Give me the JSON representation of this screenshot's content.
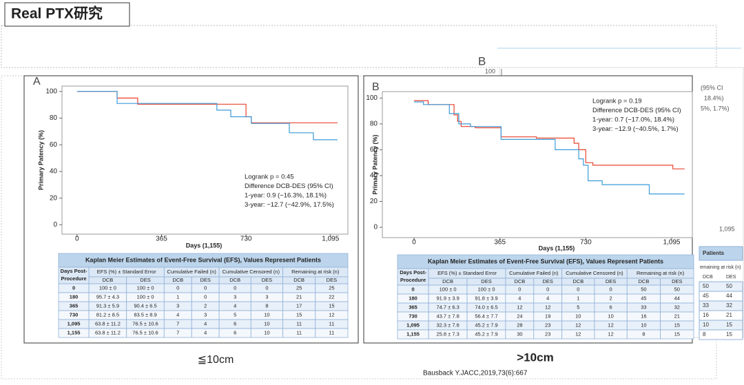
{
  "slide_title": "Real PTX研究",
  "chart_data": [
    {
      "type": "line",
      "panel_label": "A",
      "y_label": "Primary Patency (%)",
      "x_label": "Days (1,155)",
      "annotation": [
        "Logrank p = 0.45",
        "Difference DCB-DES (95% CI)",
        "1-year: 0.9 (−16.3%, 18.1%)",
        "3-year: −12.7 (−42.9%, 17.5%)"
      ],
      "xlim": [
        -65,
        1170
      ],
      "ylim": [
        -7,
        104
      ],
      "xticks": [
        0,
        365,
        730,
        {
          "value": 1095,
          "label": "1,095"
        }
      ],
      "yticks": [
        0,
        20,
        40,
        60,
        80,
        100
      ],
      "series": [
        {
          "color": "#e8412c",
          "x": [
            0,
            173,
            173,
            262,
            262,
            730,
            730,
            753,
            753,
            1125
          ],
          "values": [
            100,
            100,
            95,
            95,
            90.4,
            90.4,
            81,
            81,
            76.5,
            76.5
          ]
        },
        {
          "color": "#3a9ad9",
          "x": [
            0,
            173,
            173,
            604,
            604,
            664,
            664,
            753,
            753,
            917,
            917,
            1021,
            1021,
            1125
          ],
          "values": [
            100,
            100,
            91,
            91,
            86,
            86,
            81,
            81,
            76,
            76,
            69,
            69,
            63.8,
            63.8
          ]
        }
      ]
    },
    {
      "type": "line",
      "panel_label": "B",
      "y_label": "Primary Patency (%)",
      "x_label": "Days (1,155)",
      "annotation": [
        "Logrank p = 0.19",
        "Difference DCB-DES (95% CI)",
        "1-year: 0.7 (−17.0%, 18.4%)",
        "3-year: −12.9 (−40.5%, 1.7%)"
      ],
      "xlim": [
        -135,
        1183
      ],
      "ylim": [
        -8,
        105
      ],
      "xticks": [
        0,
        365,
        730,
        {
          "value": 1095,
          "label": "1,095"
        }
      ],
      "yticks": [
        0,
        20,
        40,
        60,
        80,
        100
      ],
      "series": [
        {
          "color": "#e8412c",
          "x": [
            0,
            60,
            60,
            170,
            170,
            185,
            185,
            200,
            200,
            260,
            260,
            370,
            370,
            520,
            520,
            680,
            680,
            700,
            700,
            730,
            730,
            760,
            760,
            1100,
            1100,
            1150
          ],
          "values": [
            98,
            98,
            95,
            95,
            87,
            87,
            82,
            82,
            78,
            78,
            77,
            77,
            70,
            70,
            69,
            69,
            65,
            65,
            60,
            60,
            50,
            50,
            48,
            48,
            45.2,
            45.2
          ]
        },
        {
          "color": "#3a9ad9",
          "x": [
            0,
            40,
            40,
            150,
            150,
            190,
            190,
            240,
            240,
            370,
            370,
            600,
            600,
            700,
            700,
            720,
            720,
            740,
            740,
            800,
            800,
            1000,
            1000,
            1150
          ],
          "values": [
            97,
            97,
            95,
            95,
            88,
            88,
            80,
            80,
            78,
            78,
            68,
            68,
            60,
            60,
            53,
            53,
            48,
            48,
            36,
            36,
            33,
            33,
            25.8,
            25.8
          ]
        }
      ]
    }
  ],
  "tables": [
    {
      "title": "Kaplan Meier Estimates of Event-Free Survival (EFS), Values Represent Patients",
      "days_header": [
        "Days Post-",
        "Procedure"
      ],
      "groups": [
        "EFS (%) ± Standard Error",
        "Cumulative Failed (n)",
        "Cumulative Censored (n)",
        "Remaining at risk (n)"
      ],
      "subheaders": [
        "DCB",
        "DES",
        "DCB",
        "DES",
        "DCB",
        "DES",
        "DCB",
        "DES"
      ],
      "rows": [
        [
          "0",
          "100 ± 0",
          "100 ± 0",
          "0",
          "0",
          "0",
          "0",
          "25",
          "25"
        ],
        [
          "180",
          "95.7 ± 4.3",
          "100 ± 0",
          "1",
          "0",
          "3",
          "3",
          "21",
          "22"
        ],
        [
          "365",
          "91.3 ± 5.9",
          "90.4 ± 6.5",
          "3",
          "2",
          "4",
          "8",
          "17",
          "15"
        ],
        [
          "730",
          "81.2 ± 8.5",
          "83.5 ± 8.9",
          "4",
          "3",
          "5",
          "10",
          "15",
          "12"
        ],
        [
          "1,095",
          "63.8 ± 11.2",
          "76.5 ± 10.6",
          "7",
          "4",
          "6",
          "10",
          "11",
          "11"
        ],
        [
          "1,155",
          "63.8 ± 11.2",
          "76.5 ± 10.6",
          "7",
          "4",
          "6",
          "10",
          "11",
          "11"
        ]
      ]
    },
    {
      "title": "Kaplan Meier Estimates of Event-Free Survival (EFS), Values Represent Patients",
      "days_header": [
        "Days Post-",
        "Procedure"
      ],
      "groups": [
        "EFS (%) ± Standard Error",
        "Cumulative Failed (n)",
        "Cumulative Censored (n)",
        "Remaining at risk (n)"
      ],
      "subheaders": [
        "DCB",
        "DES",
        "DCB",
        "DES",
        "DCB",
        "DES",
        "DCB",
        "DES"
      ],
      "rows": [
        [
          "0",
          "100 ± 0",
          "100 ± 0",
          "0",
          "0",
          "0",
          "0",
          "50",
          "50"
        ],
        [
          "180",
          "91.9 ± 3.9",
          "91.8 ± 3.9",
          "4",
          "4",
          "1",
          "2",
          "45",
          "44"
        ],
        [
          "365",
          "74.7 ± 6.3",
          "74.0 ± 6.5",
          "12",
          "12",
          "5",
          "6",
          "33",
          "32"
        ],
        [
          "730",
          "43.7 ± 7.8",
          "56.4 ± 7.7",
          "24",
          "19",
          "10",
          "10",
          "16",
          "21"
        ],
        [
          "1,095",
          "32.3 ± 7.6",
          "45.2 ± 7.9",
          "28",
          "23",
          "12",
          "12",
          "10",
          "15"
        ],
        [
          "1,155",
          "25.8 ± 7.3",
          "45.2 ± 7.9",
          "30",
          "23",
          "12",
          "12",
          "8",
          "15"
        ]
      ]
    }
  ],
  "captions": [
    "≦10cm",
    ">10cm"
  ],
  "citation": "Bausback Y.JACC,2019,73(6):667",
  "background_panel": {
    "label": "B",
    "tick_top": "100",
    "tick_right": "1,095",
    "text_lines": [
      "(95% CI",
      "18.4%)",
      "5%, 1.7%)"
    ],
    "table_title": "Patients",
    "table_group": "emaining at risk (n)",
    "table_sub": [
      "DCB",
      "DES"
    ],
    "rows": [
      [
        "50",
        "50"
      ],
      [
        "45",
        "44"
      ],
      [
        "33",
        "32"
      ],
      [
        "16",
        "21"
      ],
      [
        "10",
        "15"
      ],
      [
        "8",
        "15"
      ]
    ]
  }
}
